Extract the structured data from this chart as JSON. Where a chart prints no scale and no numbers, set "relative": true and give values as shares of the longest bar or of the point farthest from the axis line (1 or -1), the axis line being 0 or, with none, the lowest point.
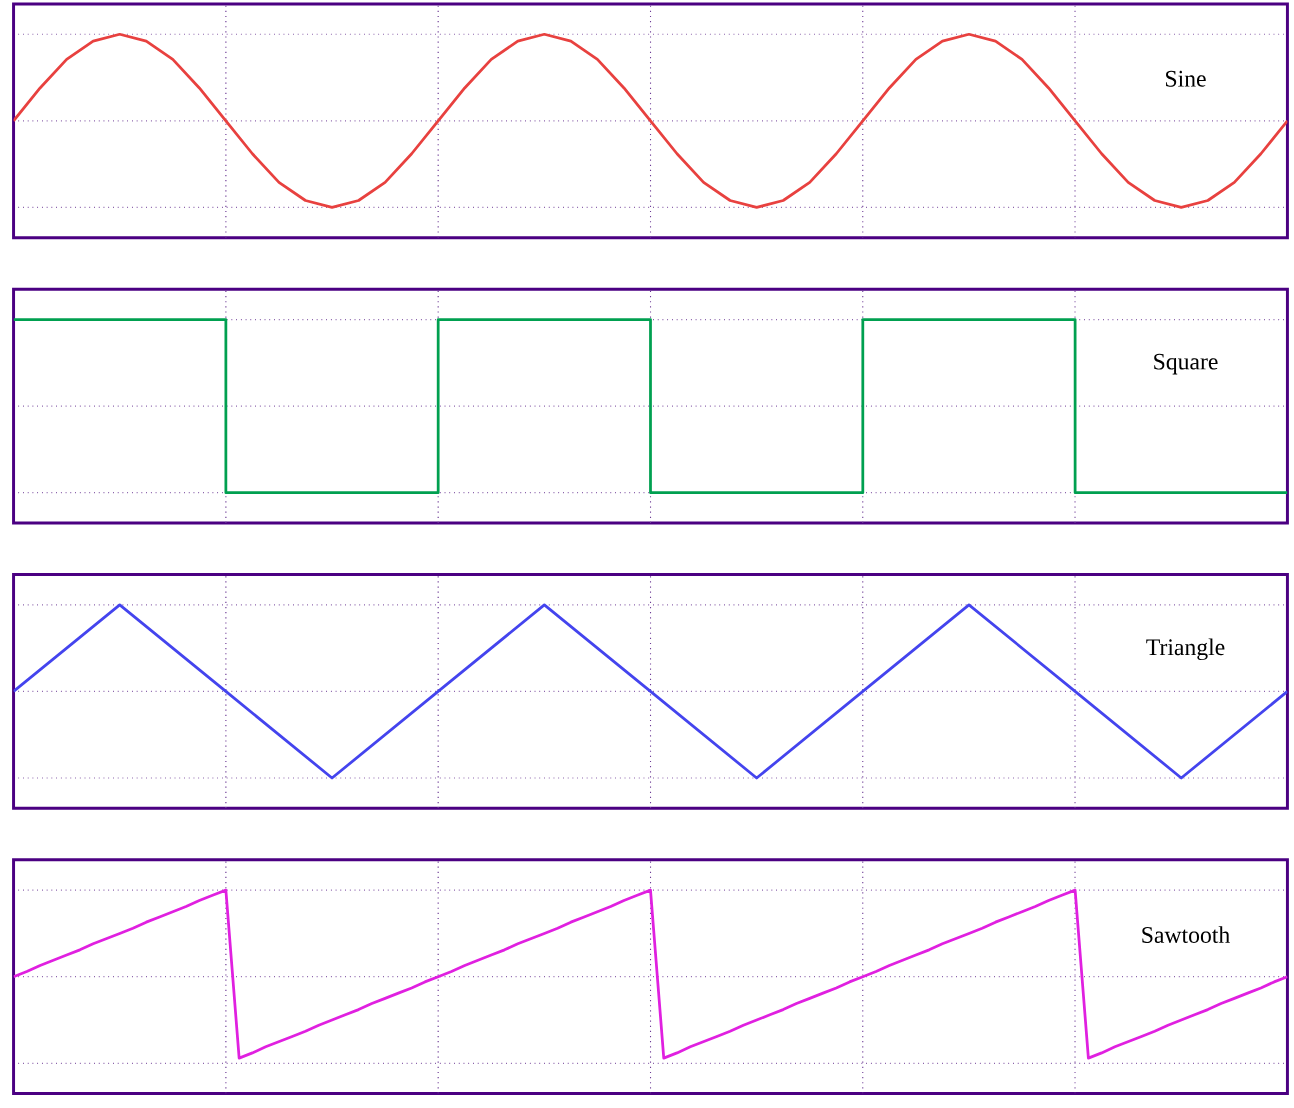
{
  "chart_data": [
    {
      "type": "line",
      "relative": true,
      "grid": true,
      "legend": false,
      "marker": "none",
      "categories": [
        null,
        null,
        null,
        null,
        null,
        null,
        null,
        null,
        null,
        null,
        null,
        null,
        null,
        null,
        null,
        null,
        null,
        null,
        null,
        null,
        null,
        null,
        null,
        null,
        null,
        null,
        null,
        null,
        null,
        null,
        null,
        null,
        null,
        null,
        null,
        null,
        null,
        null,
        null,
        null,
        null,
        null,
        null,
        null,
        null,
        null,
        null,
        null,
        null
      ],
      "series": [
        {
          "name": "Sine",
          "color": "#e8413f",
          "values": [
            0,
            0.38,
            0.71,
            0.92,
            1,
            0.92,
            0.71,
            0.38,
            0,
            -0.38,
            -0.71,
            -0.92,
            -1,
            -0.92,
            -0.71,
            -0.38,
            0,
            0.38,
            0.71,
            0.92,
            1,
            0.92,
            0.71,
            0.38,
            0,
            -0.38,
            -0.71,
            -0.92,
            -1,
            -0.92,
            -0.71,
            -0.38,
            0,
            0.38,
            0.71,
            0.92,
            1,
            0.92,
            0.71,
            0.38,
            0,
            -0.38,
            -0.71,
            -0.92,
            -1,
            -0.92,
            -0.71,
            -0.38,
            0
          ]
        }
      ]
    },
    {
      "type": "step",
      "relative": true,
      "grid": true,
      "legend": false,
      "marker": "none",
      "categories": [
        null,
        null,
        null,
        null,
        null,
        null,
        null
      ],
      "series": [
        {
          "name": "Square",
          "color": "#00a050",
          "values": [
            1,
            -1,
            1,
            -1,
            1,
            -1,
            -1
          ]
        }
      ]
    },
    {
      "type": "line",
      "relative": true,
      "grid": true,
      "legend": false,
      "marker": "none",
      "categories": [
        null,
        null,
        null,
        null,
        null,
        null,
        null,
        null,
        null,
        null,
        null,
        null,
        null
      ],
      "series": [
        {
          "name": "Triangle",
          "color": "#4444ee",
          "values": [
            0,
            1,
            0,
            -1,
            0,
            1,
            0,
            -1,
            0,
            1,
            0,
            -1,
            0
          ]
        }
      ]
    },
    {
      "type": "line",
      "relative": true,
      "grid": true,
      "legend": false,
      "marker": "none",
      "categories": [
        null,
        null,
        null,
        null,
        null,
        null,
        null,
        null,
        null,
        null,
        null,
        null,
        null,
        null,
        null,
        null,
        null,
        null,
        null,
        null,
        null,
        null,
        null,
        null,
        null,
        null,
        null,
        null,
        null,
        null,
        null,
        null,
        null,
        null,
        null,
        null,
        null,
        null,
        null,
        null,
        null,
        null,
        null,
        null,
        null,
        null,
        null,
        null,
        null,
        null,
        null,
        null,
        null,
        null,
        null,
        null,
        null,
        null,
        null,
        null,
        null,
        null,
        null,
        null,
        null,
        null,
        null,
        null,
        null,
        null,
        null,
        null,
        null,
        null,
        null,
        null,
        null,
        null,
        null,
        null,
        null,
        null,
        null,
        null,
        null,
        null,
        null,
        null,
        null,
        null,
        null,
        null,
        null,
        null,
        null,
        null,
        null
      ],
      "series": [
        {
          "name": "Sawtooth",
          "color": "#e020e0",
          "values": [
            0,
            0.06,
            0.13,
            0.19,
            0.25,
            0.31,
            0.38,
            0.44,
            0.5,
            0.56,
            0.63,
            0.69,
            0.75,
            0.81,
            0.88,
            0.94,
            1,
            -0.94,
            -0.88,
            -0.81,
            -0.75,
            -0.69,
            -0.63,
            -0.56,
            -0.5,
            -0.44,
            -0.38,
            -0.31,
            -0.25,
            -0.19,
            -0.13,
            -0.06,
            0,
            0.06,
            0.13,
            0.19,
            0.25,
            0.31,
            0.38,
            0.44,
            0.5,
            0.56,
            0.63,
            0.69,
            0.75,
            0.81,
            0.88,
            0.94,
            1,
            -0.94,
            -0.88,
            -0.81,
            -0.75,
            -0.69,
            -0.63,
            -0.56,
            -0.5,
            -0.44,
            -0.38,
            -0.31,
            -0.25,
            -0.19,
            -0.13,
            -0.06,
            0,
            0.06,
            0.13,
            0.19,
            0.25,
            0.31,
            0.38,
            0.44,
            0.5,
            0.56,
            0.63,
            0.69,
            0.75,
            0.81,
            0.88,
            0.94,
            1,
            -0.94,
            -0.88,
            -0.81,
            -0.75,
            -0.69,
            -0.63,
            -0.56,
            -0.5,
            -0.44,
            -0.38,
            -0.31,
            -0.25,
            -0.19,
            -0.13,
            -0.06,
            0
          ]
        }
      ]
    }
  ]
}
